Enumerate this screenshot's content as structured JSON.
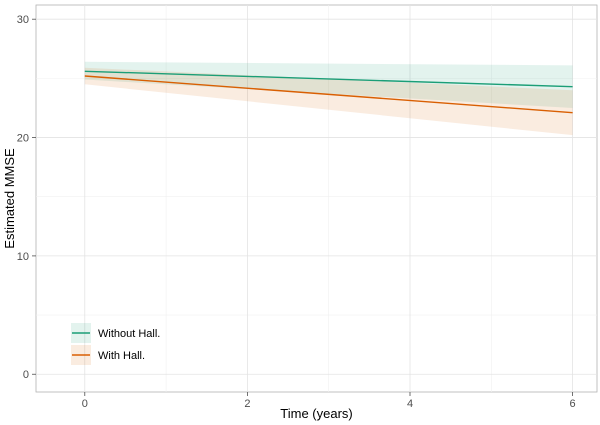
{
  "chart_data": {
    "type": "line",
    "xlabel": "Time (years)",
    "ylabel": "Estimated MMSE",
    "xlim": [
      -0.6,
      6.3
    ],
    "ylim": [
      -1.5,
      31.2
    ],
    "x_ticks": [
      0,
      2,
      4,
      6
    ],
    "y_ticks": [
      0,
      10,
      20,
      30
    ],
    "grid": true,
    "legend_position": "bottom-left",
    "series": [
      {
        "name": "Without Hall.",
        "color": "#1b9e77",
        "x": [
          0,
          6
        ],
        "y": [
          25.6,
          24.3
        ],
        "ci_lower": [
          24.9,
          22.5
        ],
        "ci_upper": [
          26.4,
          26.1
        ]
      },
      {
        "name": "With Hall.",
        "color": "#d95f02",
        "x": [
          0,
          6
        ],
        "y": [
          25.2,
          22.1
        ],
        "ci_lower": [
          24.5,
          20.2
        ],
        "ci_upper": [
          25.9,
          24.0
        ]
      }
    ]
  }
}
